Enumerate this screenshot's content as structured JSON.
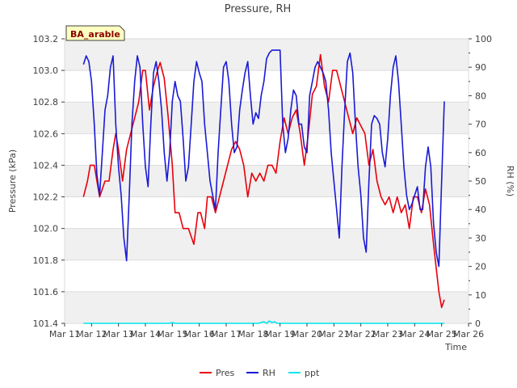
{
  "chart_data": {
    "type": "line",
    "title": "Pressure, RH",
    "badge": "BA_arable",
    "xlabel": "Time",
    "ylabel_left": "Pressure (kPa)",
    "ylabel_right": "RH (%)",
    "ylim_left": [
      101.4,
      103.2
    ],
    "ylim_right": [
      0,
      100
    ],
    "xlim": [
      11,
      26
    ],
    "x_tick_values": [
      11,
      12,
      13,
      14,
      15,
      16,
      17,
      18,
      19,
      20,
      21,
      22,
      23,
      24,
      25,
      26
    ],
    "x_tick_labels": [
      "Mar 11",
      "Mar 12",
      "Mar 13",
      "Mar 14",
      "Mar 15",
      "Mar 16",
      "Mar 17",
      "Mar 18",
      "Mar 19",
      "Mar 20",
      "Mar 21",
      "Mar 22",
      "Mar 23",
      "Mar 24",
      "Mar 25",
      "Mar 26"
    ],
    "y_left_ticks": [
      "101.4",
      "101.6",
      "101.8",
      "102.0",
      "102.2",
      "102.4",
      "102.6",
      "102.8",
      "103.0",
      "103.2"
    ],
    "y_right_ticks": [
      "0",
      "10",
      "20",
      "30",
      "40",
      "50",
      "60",
      "70",
      "80",
      "90",
      "100"
    ],
    "grid": "horizontal bands",
    "legend_position": "bottom-center",
    "series": [
      {
        "name": "Pres",
        "axis": "left",
        "color": "#e8000b",
        "x": [
          11.7,
          11.85,
          11.95,
          12.1,
          12.3,
          12.5,
          12.65,
          12.8,
          12.9,
          13.0,
          13.15,
          13.3,
          13.45,
          13.6,
          13.75,
          13.9,
          14.0,
          14.15,
          14.3,
          14.45,
          14.55,
          14.7,
          14.85,
          15.0,
          15.1,
          15.25,
          15.4,
          15.6,
          15.8,
          15.95,
          16.05,
          16.2,
          16.3,
          16.45,
          16.6,
          16.75,
          16.9,
          17.05,
          17.2,
          17.35,
          17.5,
          17.65,
          17.8,
          17.95,
          18.1,
          18.25,
          18.4,
          18.55,
          18.7,
          18.85,
          19.0,
          19.15,
          19.3,
          19.45,
          19.6,
          19.75,
          19.9,
          20.05,
          20.2,
          20.35,
          20.5,
          20.65,
          20.8,
          20.95,
          21.1,
          21.25,
          21.4,
          21.55,
          21.7,
          21.85,
          22.0,
          22.15,
          22.3,
          22.45,
          22.6,
          22.75,
          22.9,
          23.05,
          23.2,
          23.35,
          23.5,
          23.65,
          23.8,
          23.95,
          24.1,
          24.25,
          24.4,
          24.55,
          24.7,
          24.8,
          24.9,
          25.0,
          25.1
        ],
        "y": [
          102.2,
          102.3,
          102.4,
          102.4,
          102.2,
          102.3,
          102.3,
          102.5,
          102.6,
          102.5,
          102.3,
          102.5,
          102.6,
          102.7,
          102.8,
          103.0,
          103.0,
          102.75,
          102.9,
          103.0,
          103.05,
          102.95,
          102.7,
          102.4,
          102.1,
          102.1,
          102.0,
          102.0,
          101.9,
          102.1,
          102.1,
          102.0,
          102.2,
          102.2,
          102.1,
          102.2,
          102.3,
          102.4,
          102.5,
          102.55,
          102.5,
          102.4,
          102.2,
          102.35,
          102.3,
          102.35,
          102.3,
          102.4,
          102.4,
          102.35,
          102.55,
          102.7,
          102.6,
          102.7,
          102.75,
          102.6,
          102.4,
          102.6,
          102.85,
          102.9,
          103.1,
          102.9,
          102.8,
          103.0,
          103.0,
          102.9,
          102.8,
          102.7,
          102.6,
          102.7,
          102.65,
          102.6,
          102.4,
          102.5,
          102.3,
          102.2,
          102.15,
          102.2,
          102.1,
          102.2,
          102.1,
          102.15,
          102.0,
          102.2,
          102.2,
          102.1,
          102.25,
          102.15,
          101.9,
          101.75,
          101.6,
          101.5,
          101.55
        ]
      },
      {
        "name": "RH",
        "axis": "right",
        "color": "#1a1ad6",
        "x": [
          11.7,
          11.8,
          11.9,
          12.0,
          12.1,
          12.2,
          12.3,
          12.4,
          12.5,
          12.6,
          12.7,
          12.8,
          12.9,
          13.0,
          13.1,
          13.2,
          13.3,
          13.4,
          13.5,
          13.6,
          13.7,
          13.8,
          13.9,
          14.0,
          14.1,
          14.2,
          14.3,
          14.4,
          14.5,
          14.6,
          14.7,
          14.8,
          14.9,
          15.0,
          15.1,
          15.2,
          15.3,
          15.4,
          15.5,
          15.6,
          15.7,
          15.8,
          15.9,
          16.0,
          16.1,
          16.2,
          16.3,
          16.4,
          16.5,
          16.6,
          16.7,
          16.8,
          16.9,
          17.0,
          17.1,
          17.2,
          17.3,
          17.4,
          17.5,
          17.6,
          17.7,
          17.8,
          17.9,
          18.0,
          18.1,
          18.2,
          18.3,
          18.4,
          18.5,
          18.6,
          18.7,
          18.8,
          18.9,
          19.0,
          19.1,
          19.2,
          19.3,
          19.4,
          19.5,
          19.6,
          19.7,
          19.8,
          19.9,
          20.0,
          20.1,
          20.2,
          20.3,
          20.4,
          20.5,
          20.6,
          20.7,
          20.8,
          20.9,
          21.0,
          21.1,
          21.2,
          21.3,
          21.4,
          21.5,
          21.6,
          21.7,
          21.8,
          21.9,
          22.0,
          22.1,
          22.2,
          22.3,
          22.4,
          22.5,
          22.6,
          22.7,
          22.8,
          22.9,
          23.0,
          23.1,
          23.2,
          23.3,
          23.4,
          23.5,
          23.6,
          23.7,
          23.8,
          23.9,
          24.0,
          24.1,
          24.2,
          24.3,
          24.4,
          24.5,
          24.6,
          24.7,
          24.8,
          24.9,
          25.0,
          25.1
        ],
        "y": [
          91,
          94,
          92,
          85,
          70,
          52,
          45,
          60,
          75,
          80,
          90,
          94,
          70,
          55,
          45,
          30,
          22,
          45,
          70,
          85,
          94,
          90,
          70,
          55,
          48,
          70,
          88,
          92,
          85,
          75,
          60,
          50,
          60,
          78,
          85,
          80,
          78,
          65,
          50,
          55,
          70,
          85,
          92,
          88,
          85,
          70,
          60,
          50,
          45,
          40,
          60,
          75,
          90,
          92,
          85,
          70,
          60,
          62,
          75,
          82,
          88,
          92,
          80,
          70,
          74,
          72,
          80,
          85,
          93,
          95,
          96,
          96,
          96,
          96,
          70,
          60,
          65,
          75,
          82,
          80,
          70,
          70,
          62,
          60,
          80,
          85,
          90,
          92,
          90,
          88,
          85,
          75,
          60,
          50,
          40,
          30,
          55,
          75,
          92,
          95,
          88,
          70,
          55,
          45,
          30,
          25,
          50,
          70,
          73,
          72,
          70,
          60,
          55,
          65,
          80,
          90,
          94,
          85,
          70,
          55,
          45,
          40,
          42,
          45,
          48,
          40,
          40,
          55,
          62,
          55,
          35,
          25,
          20,
          50,
          78
        ]
      },
      {
        "name": "ppt",
        "axis": "left",
        "color": "#00e5ee",
        "x": [
          11.7,
          14.9,
          15.0,
          15.1,
          18.2,
          18.3,
          18.4,
          18.5,
          18.6,
          18.7,
          18.8,
          18.9,
          19.0,
          25.1
        ],
        "y": [
          101.4,
          101.4,
          101.405,
          101.4,
          101.4,
          101.405,
          101.41,
          101.4,
          101.415,
          101.405,
          101.41,
          101.4,
          101.4,
          101.4
        ]
      }
    ]
  }
}
